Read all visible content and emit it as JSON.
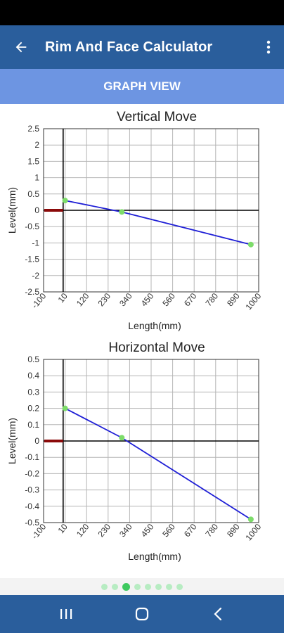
{
  "app_bar": {
    "title": "Rim And Face Calculator",
    "back_icon": "arrow-back-icon",
    "menu_icon": "more-vert-icon"
  },
  "sub_header": {
    "label": "GRAPH VIEW"
  },
  "colors": {
    "app_bar": "#2a5e9c",
    "sub_header": "#6d95e2",
    "series_line": "#1f1fd6",
    "points": "#7ddc6a",
    "marker": "#8b0a0a",
    "dot_active": "#3ec95f",
    "dot_inactive": "#b7ecc2"
  },
  "chart_data": [
    {
      "type": "line",
      "title": "Vertical  Move",
      "xlabel": "Length(mm)",
      "ylabel": "Level(mm)",
      "xlim": [
        -100,
        1000
      ],
      "ylim": [
        -2.5,
        2.5
      ],
      "x_ticks": [
        "-100",
        "10",
        "120",
        "230",
        "340",
        "450",
        "560",
        "670",
        "780",
        "890",
        "1000"
      ],
      "y_ticks": [
        "2.5",
        "2",
        "1.5",
        "1",
        "0.5",
        "0",
        "-0.5",
        "-1",
        "-1.5",
        "-2",
        "-2.5"
      ],
      "grid": true,
      "series": [
        {
          "x": [
            10,
            300,
            960
          ],
          "y": [
            0.3,
            -0.05,
            -1.05
          ]
        }
      ],
      "marker_segment": {
        "x": [
          -100,
          0
        ],
        "y": [
          0,
          0
        ]
      }
    },
    {
      "type": "line",
      "title": "Horizontal Move",
      "xlabel": "Length(mm)",
      "ylabel": "Level(mm)",
      "xlim": [
        -100,
        1000
      ],
      "ylim": [
        -0.5,
        0.5
      ],
      "x_ticks": [
        "-100",
        "10",
        "120",
        "230",
        "340",
        "450",
        "560",
        "670",
        "780",
        "890",
        "1000"
      ],
      "y_ticks": [
        "0.5",
        "0.4",
        "0.3",
        "0.2",
        "0.1",
        "0",
        "-0.1",
        "-0.2",
        "-0.3",
        "-0.4",
        "-0.5"
      ],
      "grid": true,
      "series": [
        {
          "x": [
            10,
            300,
            960
          ],
          "y": [
            0.2,
            0.02,
            -0.48
          ]
        }
      ],
      "marker_segment": {
        "x": [
          -100,
          0
        ],
        "y": [
          0,
          0
        ]
      }
    }
  ],
  "pager": {
    "count": 8,
    "active_index": 2
  },
  "nav_bar": {
    "recents_icon": "recents-icon",
    "home_icon": "home-icon",
    "back_icon": "back-chevron-icon"
  }
}
